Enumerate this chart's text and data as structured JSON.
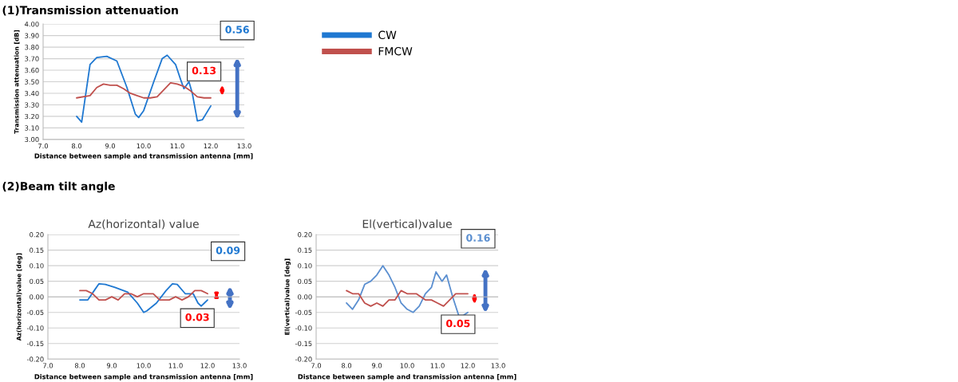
{
  "chart_data": [
    {
      "type": "line",
      "title": "(1)Transmission attenuation",
      "xlabel": "Distance between sample and transmission antenna [mm]",
      "ylabel": "Transmission attenuation [dB]",
      "xlim": [
        7,
        13
      ],
      "xticks": [
        {
          "value": 7,
          "label": "7.0"
        },
        {
          "value": 8,
          "label": "8.0"
        },
        {
          "value": 9,
          "label": "9.0"
        },
        {
          "value": 10,
          "label": "10.0"
        },
        {
          "value": 11,
          "label": "11.0"
        },
        {
          "value": 12,
          "label": "12.0"
        },
        {
          "value": 13,
          "label": "13.0"
        }
      ],
      "ylim": [
        3.0,
        4.0
      ],
      "yticks": [
        {
          "value": 3.0,
          "label": "3.00"
        },
        {
          "value": 3.1,
          "label": "3.10"
        },
        {
          "value": 3.2,
          "label": "3.20"
        },
        {
          "value": 3.3,
          "label": "3.30"
        },
        {
          "value": 3.4,
          "label": "3.40"
        },
        {
          "value": 3.5,
          "label": "3.50"
        },
        {
          "value": 3.6,
          "label": "3.60"
        },
        {
          "value": 3.7,
          "label": "3.70"
        },
        {
          "value": 3.8,
          "label": "3.80"
        },
        {
          "value": 3.9,
          "label": "3.90"
        },
        {
          "value": 4.0,
          "label": "4.00"
        }
      ],
      "grid": "y",
      "legend": "right",
      "annotations": [
        "0.56",
        "0.13"
      ],
      "series": [
        {
          "name": "CW",
          "color": "#1f78d1",
          "x": [
            8.0,
            8.15,
            8.25,
            8.4,
            8.6,
            8.9,
            9.2,
            9.5,
            9.75,
            9.85,
            10.0,
            10.3,
            10.55,
            10.7,
            10.95,
            11.1,
            11.2,
            11.35,
            11.45,
            11.6,
            11.75,
            12.0
          ],
          "values": [
            3.2,
            3.15,
            3.35,
            3.65,
            3.71,
            3.72,
            3.68,
            3.45,
            3.22,
            3.19,
            3.25,
            3.5,
            3.7,
            3.73,
            3.65,
            3.52,
            3.44,
            3.5,
            3.4,
            3.16,
            3.17,
            3.29
          ]
        },
        {
          "name": "FMCW",
          "color": "#c0504d",
          "x": [
            8.0,
            8.4,
            8.6,
            8.8,
            9.0,
            9.2,
            9.4,
            9.6,
            9.8,
            10.0,
            10.2,
            10.4,
            10.6,
            10.8,
            11.0,
            11.2,
            11.4,
            11.6,
            11.8,
            12.0
          ],
          "values": [
            3.36,
            3.38,
            3.45,
            3.48,
            3.47,
            3.47,
            3.44,
            3.4,
            3.38,
            3.36,
            3.36,
            3.37,
            3.43,
            3.49,
            3.48,
            3.46,
            3.42,
            3.37,
            3.36,
            3.36
          ]
        }
      ]
    },
    {
      "type": "line",
      "title": "(2)Beam tilt angle",
      "subtitle": "Az(horizontal) value",
      "xlabel": "Distance between sample and transmission antenna [mm]",
      "ylabel": "Az(horizontal)value [deg]",
      "xlim": [
        7,
        13
      ],
      "xticks": [
        {
          "value": 7,
          "label": "7.0"
        },
        {
          "value": 8,
          "label": "8.0"
        },
        {
          "value": 9,
          "label": "9.0"
        },
        {
          "value": 10,
          "label": "10.0"
        },
        {
          "value": 11,
          "label": "11.0"
        },
        {
          "value": 12,
          "label": "12.0"
        },
        {
          "value": 13,
          "label": "13.0"
        }
      ],
      "ylim": [
        -0.2,
        0.2
      ],
      "yticks": [
        {
          "value": -0.2,
          "label": "-0.20"
        },
        {
          "value": -0.15,
          "label": "-0.15"
        },
        {
          "value": -0.1,
          "label": "-0.10"
        },
        {
          "value": -0.05,
          "label": "-0.05"
        },
        {
          "value": 0,
          "label": "0.00"
        },
        {
          "value": 0.05,
          "label": "0.05"
        },
        {
          "value": 0.1,
          "label": "0.10"
        },
        {
          "value": 0.15,
          "label": "0.15"
        },
        {
          "value": 0.2,
          "label": "0.20"
        }
      ],
      "grid": "y",
      "annotations": [
        "0.09",
        "0.03"
      ],
      "series": [
        {
          "color": "#1f78d1",
          "x": [
            8.0,
            8.25,
            8.45,
            8.6,
            8.8,
            9.1,
            9.5,
            9.8,
            10.0,
            10.1,
            10.4,
            10.7,
            10.9,
            11.05,
            11.3,
            11.55,
            11.7,
            11.8,
            11.9,
            12.0
          ],
          "values": [
            -0.01,
            -0.01,
            0.02,
            0.042,
            0.04,
            0.03,
            0.015,
            -0.02,
            -0.05,
            -0.045,
            -0.02,
            0.02,
            0.042,
            0.04,
            0.01,
            0.01,
            -0.02,
            -0.03,
            -0.02,
            -0.01
          ]
        },
        {
          "color": "#c0504d",
          "x": [
            8.0,
            8.2,
            8.4,
            8.6,
            8.8,
            9.0,
            9.2,
            9.4,
            9.6,
            9.8,
            10.0,
            10.3,
            10.5,
            10.8,
            11.0,
            11.2,
            11.4,
            11.6,
            11.8,
            12.0
          ],
          "values": [
            0.02,
            0.02,
            0.01,
            -0.01,
            -0.01,
            0.0,
            -0.01,
            0.01,
            0.01,
            0.0,
            0.01,
            0.01,
            -0.01,
            -0.01,
            0.0,
            -0.01,
            0.0,
            0.02,
            0.02,
            0.01
          ]
        }
      ]
    },
    {
      "type": "line",
      "title": "El(vertical)value",
      "xlabel": "Distance between sample and transmission antenna [mm]",
      "ylabel": "El(vertical)value [deg]",
      "xlim": [
        7,
        13
      ],
      "xticks": [
        {
          "value": 7,
          "label": "7.0"
        },
        {
          "value": 8,
          "label": "8.0"
        },
        {
          "value": 9,
          "label": "9.0"
        },
        {
          "value": 10,
          "label": "10.0"
        },
        {
          "value": 11,
          "label": "11.0"
        },
        {
          "value": 12,
          "label": "12.0"
        },
        {
          "value": 13,
          "label": "13.0"
        }
      ],
      "ylim": [
        -0.2,
        0.2
      ],
      "yticks": [
        {
          "value": -0.2,
          "label": "-0.20"
        },
        {
          "value": -0.15,
          "label": "-0.15"
        },
        {
          "value": -0.1,
          "label": "-0.10"
        },
        {
          "value": -0.05,
          "label": "-0.05"
        },
        {
          "value": 0,
          "label": "0.00"
        },
        {
          "value": 0.05,
          "label": "0.05"
        },
        {
          "value": 0.1,
          "label": "0.10"
        },
        {
          "value": 0.15,
          "label": "0.15"
        },
        {
          "value": 0.2,
          "label": "0.20"
        }
      ],
      "grid": "y",
      "annotations": [
        "0.16",
        "0.05"
      ],
      "series": [
        {
          "color": "#5b8fd0",
          "x": [
            8.0,
            8.2,
            8.4,
            8.6,
            8.8,
            9.0,
            9.2,
            9.4,
            9.6,
            9.8,
            10.0,
            10.2,
            10.4,
            10.6,
            10.8,
            10.95,
            11.15,
            11.3,
            11.5,
            11.7,
            11.85,
            12.0
          ],
          "values": [
            -0.02,
            -0.04,
            -0.01,
            0.04,
            0.05,
            0.07,
            0.1,
            0.07,
            0.03,
            -0.02,
            -0.04,
            -0.05,
            -0.03,
            0.01,
            0.03,
            0.08,
            0.05,
            0.07,
            0.0,
            -0.06,
            -0.06,
            -0.05
          ]
        },
        {
          "color": "#c0504d",
          "x": [
            8.0,
            8.2,
            8.4,
            8.6,
            8.8,
            9.0,
            9.2,
            9.4,
            9.6,
            9.8,
            10.0,
            10.3,
            10.6,
            10.8,
            11.0,
            11.2,
            11.4,
            11.6,
            11.8,
            12.0
          ],
          "values": [
            0.02,
            0.01,
            0.01,
            -0.02,
            -0.03,
            -0.02,
            -0.03,
            -0.01,
            -0.01,
            0.02,
            0.01,
            0.01,
            -0.01,
            -0.01,
            -0.02,
            -0.03,
            -0.01,
            0.01,
            0.01,
            0.01
          ]
        }
      ]
    }
  ]
}
